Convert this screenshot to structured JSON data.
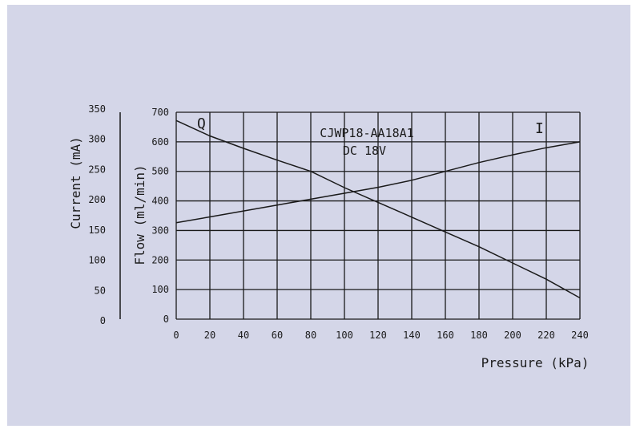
{
  "chart_data": {
    "type": "line",
    "xlabel": "Pressure (kPa)",
    "xlim": [
      0,
      240
    ],
    "x_ticks": [
      "0",
      "20",
      "40",
      "60",
      "80",
      "100",
      "120",
      "140",
      "160",
      "180",
      "200",
      "220",
      "240"
    ],
    "y_axes": [
      {
        "label": "Flow (ml/min)",
        "ylim": [
          0,
          700
        ],
        "ticks": [
          "0",
          "100",
          "200",
          "300",
          "400",
          "500",
          "600",
          "700"
        ]
      },
      {
        "label": "Current (mA)",
        "ylim": [
          0,
          350
        ],
        "ticks": [
          "0",
          "50",
          "100",
          "150",
          "200",
          "250",
          "300",
          "350"
        ]
      }
    ],
    "annotations": [
      "CJWP18-AA18A1",
      "DC 18V"
    ],
    "grid": true,
    "series": [
      {
        "name": "Q",
        "axis": "Flow (ml/min)",
        "x": [
          0,
          20,
          40,
          60,
          80,
          100,
          120,
          140,
          160,
          180,
          200,
          220,
          240
        ],
        "y": [
          672,
          620,
          578,
          538,
          500,
          445,
          395,
          345,
          295,
          245,
          190,
          135,
          72
        ]
      },
      {
        "name": "I",
        "axis": "Current (mA)",
        "x": [
          0,
          20,
          40,
          60,
          80,
          100,
          120,
          140,
          160,
          180,
          200,
          220,
          240
        ],
        "y": [
          163,
          173,
          183,
          193,
          203,
          213,
          223,
          235,
          250,
          265,
          278,
          290,
          300
        ]
      }
    ]
  }
}
